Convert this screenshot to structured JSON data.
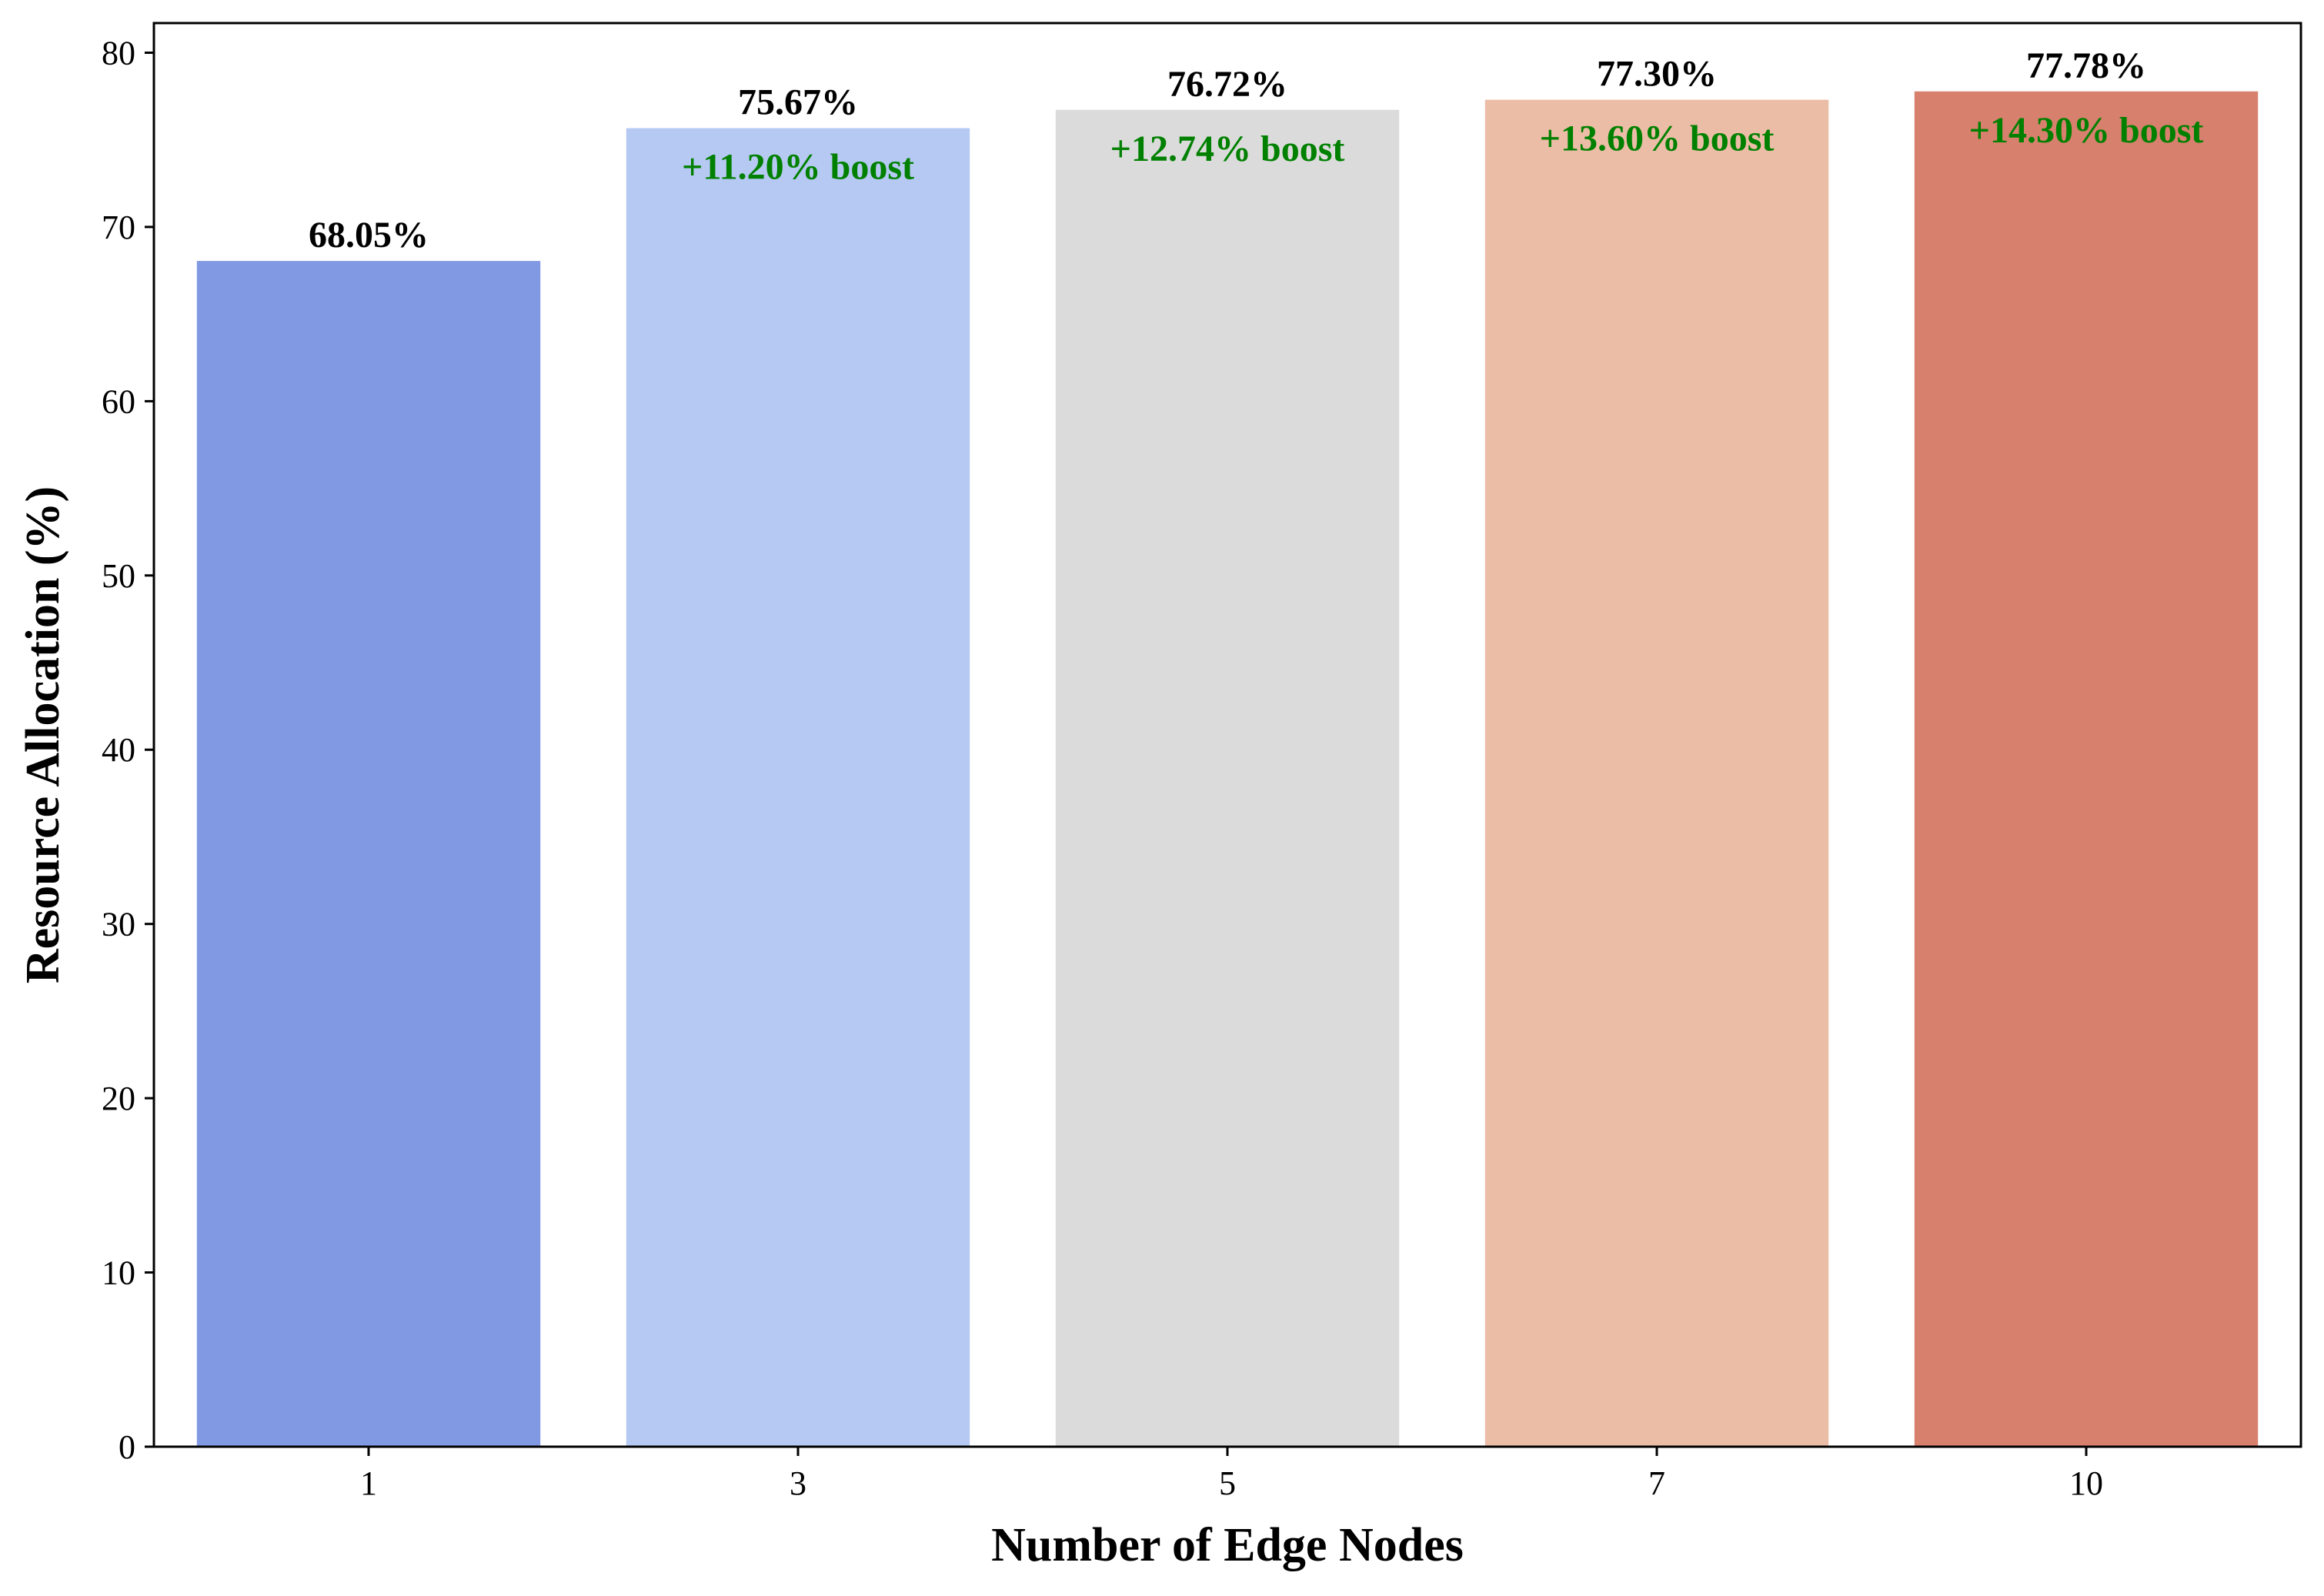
{
  "chart_data": {
    "type": "bar",
    "title": "",
    "xlabel": "Number of Edge Nodes",
    "ylabel": "Resource Allocation (%)",
    "ylim": [
      0,
      81.7
    ],
    "yticks": [
      0,
      10,
      20,
      30,
      40,
      50,
      60,
      70,
      80
    ],
    "grid": false,
    "legend": "none",
    "categories": [
      "1",
      "3",
      "5",
      "7",
      "10"
    ],
    "values": [
      68.05,
      75.67,
      76.72,
      77.3,
      77.78
    ],
    "value_labels": [
      "68.05%",
      "75.67%",
      "76.72%",
      "77.30%",
      "77.78%"
    ],
    "boost_labels": [
      "",
      "+11.20% boost",
      "+12.74% boost",
      "+13.60% boost",
      "+14.30% boost"
    ],
    "colors": [
      "#8199E2",
      "#B6C9F3",
      "#DBDBDB",
      "#ECBDA6",
      "#D6806D"
    ],
    "boost_color": "#008000"
  }
}
